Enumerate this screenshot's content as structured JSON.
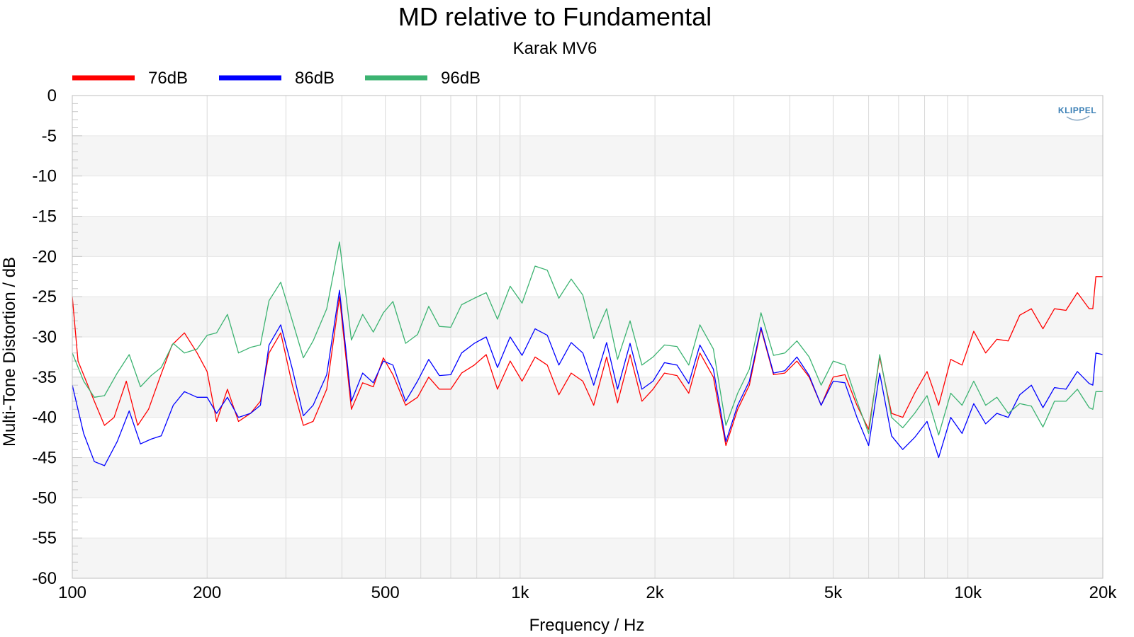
{
  "chart_data": {
    "type": "line",
    "title": "MD relative to Fundamental",
    "subtitle": "Karak MV6",
    "xlabel": "Frequency / Hz",
    "ylabel": "Multi-Tone Distortion / dB",
    "x_scale": "log",
    "xlim": [
      100,
      20000
    ],
    "ylim": [
      -60,
      0
    ],
    "grid": true,
    "legend_position": "top-left",
    "logo": "KLIPPEL",
    "x_ticks": [
      {
        "value": 100,
        "label": "100"
      },
      {
        "value": 200,
        "label": "200"
      },
      {
        "value": 500,
        "label": "500"
      },
      {
        "value": 1000,
        "label": "1k"
      },
      {
        "value": 2000,
        "label": "2k"
      },
      {
        "value": 5000,
        "label": "5k"
      },
      {
        "value": 10000,
        "label": "10k"
      },
      {
        "value": 20000,
        "label": "20k"
      }
    ],
    "y_ticks": [
      {
        "value": 0,
        "label": "0"
      },
      {
        "value": -5,
        "label": "-5"
      },
      {
        "value": -10,
        "label": "-10"
      },
      {
        "value": -15,
        "label": "-15"
      },
      {
        "value": -20,
        "label": "-20"
      },
      {
        "value": -25,
        "label": "-25"
      },
      {
        "value": -30,
        "label": "-30"
      },
      {
        "value": -35,
        "label": "-35"
      },
      {
        "value": -40,
        "label": "-40"
      },
      {
        "value": -45,
        "label": "-45"
      },
      {
        "value": -50,
        "label": "-50"
      },
      {
        "value": -55,
        "label": "-55"
      },
      {
        "value": -60,
        "label": "-60"
      }
    ],
    "series": [
      {
        "name": "76dB",
        "color": "#ff0000",
        "points": [
          [
            100,
            -25
          ],
          [
            103,
            -33
          ],
          [
            112,
            -38
          ],
          [
            118,
            -41
          ],
          [
            124,
            -40
          ],
          [
            132,
            -35.5
          ],
          [
            140,
            -41
          ],
          [
            148,
            -39
          ],
          [
            157,
            -35
          ],
          [
            167,
            -31
          ],
          [
            178,
            -29.5
          ],
          [
            190,
            -32
          ],
          [
            200,
            -34.3
          ],
          [
            210,
            -40.5
          ],
          [
            222,
            -36.5
          ],
          [
            235,
            -40.5
          ],
          [
            250,
            -39.5
          ],
          [
            263,
            -38
          ],
          [
            275,
            -32
          ],
          [
            292,
            -29.5
          ],
          [
            310,
            -36
          ],
          [
            328,
            -41
          ],
          [
            345,
            -40.5
          ],
          [
            370,
            -36.5
          ],
          [
            395,
            -25
          ],
          [
            420,
            -39
          ],
          [
            445,
            -35.7
          ],
          [
            470,
            -36.2
          ],
          [
            495,
            -32.6
          ],
          [
            520,
            -34.7
          ],
          [
            555,
            -38.5
          ],
          [
            590,
            -37.5
          ],
          [
            625,
            -35
          ],
          [
            660,
            -36.5
          ],
          [
            700,
            -36.5
          ],
          [
            740,
            -34.5
          ],
          [
            790,
            -33.5
          ],
          [
            840,
            -32.2
          ],
          [
            890,
            -36.5
          ],
          [
            950,
            -33
          ],
          [
            1010,
            -35.5
          ],
          [
            1080,
            -32.5
          ],
          [
            1150,
            -33.5
          ],
          [
            1220,
            -37.2
          ],
          [
            1300,
            -34.5
          ],
          [
            1380,
            -35.5
          ],
          [
            1460,
            -38.5
          ],
          [
            1560,
            -32.5
          ],
          [
            1650,
            -38.2
          ],
          [
            1760,
            -32.2
          ],
          [
            1870,
            -38
          ],
          [
            1980,
            -36.5
          ],
          [
            2100,
            -34.5
          ],
          [
            2240,
            -34.8
          ],
          [
            2380,
            -37
          ],
          [
            2520,
            -32
          ],
          [
            2700,
            -35
          ],
          [
            2880,
            -43.5
          ],
          [
            3060,
            -39
          ],
          [
            3250,
            -36
          ],
          [
            3450,
            -29
          ],
          [
            3680,
            -34.7
          ],
          [
            3900,
            -34.5
          ],
          [
            4150,
            -33
          ],
          [
            4420,
            -35
          ],
          [
            4700,
            -38.5
          ],
          [
            5000,
            -35
          ],
          [
            5310,
            -34.7
          ],
          [
            5650,
            -38.5
          ],
          [
            6000,
            -41.5
          ],
          [
            6350,
            -32.5
          ],
          [
            6750,
            -39.5
          ],
          [
            7150,
            -40
          ],
          [
            7600,
            -37
          ],
          [
            8100,
            -34.3
          ],
          [
            8600,
            -38.5
          ],
          [
            9150,
            -32.8
          ],
          [
            9700,
            -33.5
          ],
          [
            10300,
            -29.3
          ],
          [
            10950,
            -32
          ],
          [
            11600,
            -30.3
          ],
          [
            12300,
            -30.5
          ],
          [
            13050,
            -27.3
          ],
          [
            13850,
            -26.5
          ],
          [
            14700,
            -29
          ],
          [
            15600,
            -26.5
          ],
          [
            16550,
            -26.7
          ],
          [
            17550,
            -24.5
          ],
          [
            18650,
            -26.5
          ],
          [
            19000,
            -26.5
          ],
          [
            19300,
            -22.5
          ],
          [
            20000,
            -22.5
          ]
        ]
      },
      {
        "name": "86dB",
        "color": "#0000ff",
        "points": [
          [
            100,
            -36
          ],
          [
            106,
            -42
          ],
          [
            112,
            -45.5
          ],
          [
            118,
            -46
          ],
          [
            126,
            -43
          ],
          [
            134,
            -39.2
          ],
          [
            142,
            -43.3
          ],
          [
            150,
            -42.7
          ],
          [
            158,
            -42.3
          ],
          [
            168,
            -38.5
          ],
          [
            178,
            -36.8
          ],
          [
            190,
            -37.5
          ],
          [
            200,
            -37.5
          ],
          [
            210,
            -39.5
          ],
          [
            222,
            -37.5
          ],
          [
            235,
            -40
          ],
          [
            250,
            -39.5
          ],
          [
            263,
            -38.5
          ],
          [
            275,
            -31
          ],
          [
            292,
            -28.5
          ],
          [
            310,
            -34
          ],
          [
            328,
            -39.8
          ],
          [
            345,
            -38.5
          ],
          [
            370,
            -34.7
          ],
          [
            395,
            -24.2
          ],
          [
            420,
            -38
          ],
          [
            445,
            -34.5
          ],
          [
            470,
            -35.7
          ],
          [
            495,
            -33
          ],
          [
            520,
            -33.5
          ],
          [
            555,
            -38
          ],
          [
            590,
            -35.5
          ],
          [
            625,
            -32.8
          ],
          [
            660,
            -34.8
          ],
          [
            700,
            -34.7
          ],
          [
            740,
            -32
          ],
          [
            790,
            -30.8
          ],
          [
            840,
            -30
          ],
          [
            890,
            -33.8
          ],
          [
            950,
            -30
          ],
          [
            1010,
            -32.3
          ],
          [
            1080,
            -29
          ],
          [
            1150,
            -29.8
          ],
          [
            1220,
            -33.5
          ],
          [
            1300,
            -30.7
          ],
          [
            1380,
            -32
          ],
          [
            1460,
            -36
          ],
          [
            1560,
            -30.7
          ],
          [
            1650,
            -36.5
          ],
          [
            1760,
            -30.8
          ],
          [
            1870,
            -36.5
          ],
          [
            1980,
            -35.5
          ],
          [
            2100,
            -33.2
          ],
          [
            2240,
            -33.5
          ],
          [
            2380,
            -35.8
          ],
          [
            2520,
            -31
          ],
          [
            2700,
            -34
          ],
          [
            2880,
            -43
          ],
          [
            3060,
            -38.5
          ],
          [
            3250,
            -35.5
          ],
          [
            3450,
            -28.8
          ],
          [
            3680,
            -34.5
          ],
          [
            3900,
            -34.2
          ],
          [
            4150,
            -32.5
          ],
          [
            4420,
            -34.8
          ],
          [
            4700,
            -38.5
          ],
          [
            5000,
            -35.5
          ],
          [
            5310,
            -35.7
          ],
          [
            5650,
            -40
          ],
          [
            6000,
            -43.5
          ],
          [
            6350,
            -34.5
          ],
          [
            6750,
            -42.3
          ],
          [
            7150,
            -44
          ],
          [
            7600,
            -42.5
          ],
          [
            8100,
            -40.5
          ],
          [
            8600,
            -45
          ],
          [
            9150,
            -40
          ],
          [
            9700,
            -42
          ],
          [
            10300,
            -38.3
          ],
          [
            10950,
            -40.8
          ],
          [
            11600,
            -39.5
          ],
          [
            12300,
            -40
          ],
          [
            13050,
            -37.2
          ],
          [
            13850,
            -36
          ],
          [
            14700,
            -38.8
          ],
          [
            15600,
            -36.3
          ],
          [
            16550,
            -36.5
          ],
          [
            17550,
            -34.3
          ],
          [
            18650,
            -35.8
          ],
          [
            19000,
            -36
          ],
          [
            19300,
            -32
          ],
          [
            20000,
            -32.2
          ]
        ]
      },
      {
        "name": "96dB",
        "color": "#3cb371",
        "points": [
          [
            100,
            -32
          ],
          [
            106,
            -35.5
          ],
          [
            112,
            -37.5
          ],
          [
            118,
            -37.3
          ],
          [
            126,
            -34.5
          ],
          [
            134,
            -32.2
          ],
          [
            142,
            -36.2
          ],
          [
            150,
            -34.8
          ],
          [
            158,
            -33.8
          ],
          [
            168,
            -30.8
          ],
          [
            178,
            -32
          ],
          [
            190,
            -31.5
          ],
          [
            200,
            -29.8
          ],
          [
            210,
            -29.5
          ],
          [
            222,
            -27.2
          ],
          [
            235,
            -32
          ],
          [
            250,
            -31.3
          ],
          [
            263,
            -31
          ],
          [
            275,
            -25.5
          ],
          [
            292,
            -23.2
          ],
          [
            310,
            -28
          ],
          [
            328,
            -32.6
          ],
          [
            345,
            -30.5
          ],
          [
            370,
            -26.5
          ],
          [
            395,
            -18.2
          ],
          [
            420,
            -30.4
          ],
          [
            445,
            -27.2
          ],
          [
            470,
            -29.4
          ],
          [
            495,
            -27
          ],
          [
            520,
            -25.6
          ],
          [
            555,
            -30.8
          ],
          [
            590,
            -29.7
          ],
          [
            625,
            -26.2
          ],
          [
            660,
            -28.7
          ],
          [
            700,
            -28.8
          ],
          [
            740,
            -26
          ],
          [
            790,
            -25.2
          ],
          [
            840,
            -24.5
          ],
          [
            890,
            -27.8
          ],
          [
            950,
            -23.7
          ],
          [
            1010,
            -25.8
          ],
          [
            1080,
            -21.2
          ],
          [
            1150,
            -21.7
          ],
          [
            1220,
            -25.2
          ],
          [
            1300,
            -22.8
          ],
          [
            1380,
            -24.8
          ],
          [
            1460,
            -30.2
          ],
          [
            1560,
            -26.5
          ],
          [
            1650,
            -32.8
          ],
          [
            1760,
            -28
          ],
          [
            1870,
            -33.5
          ],
          [
            1980,
            -32.5
          ],
          [
            2100,
            -31
          ],
          [
            2240,
            -31.2
          ],
          [
            2380,
            -33.5
          ],
          [
            2520,
            -28.5
          ],
          [
            2700,
            -31.5
          ],
          [
            2880,
            -41
          ],
          [
            3060,
            -37
          ],
          [
            3250,
            -34
          ],
          [
            3450,
            -27
          ],
          [
            3680,
            -32.3
          ],
          [
            3900,
            -32
          ],
          [
            4150,
            -30.5
          ],
          [
            4420,
            -32.5
          ],
          [
            4700,
            -36
          ],
          [
            5000,
            -33
          ],
          [
            5310,
            -33.5
          ],
          [
            5650,
            -38
          ],
          [
            6000,
            -42
          ],
          [
            6350,
            -32.2
          ],
          [
            6750,
            -40
          ],
          [
            7150,
            -41.3
          ],
          [
            7600,
            -39.5
          ],
          [
            8100,
            -37.3
          ],
          [
            8600,
            -42.2
          ],
          [
            9150,
            -37
          ],
          [
            9700,
            -38.5
          ],
          [
            10300,
            -35.5
          ],
          [
            10950,
            -38.5
          ],
          [
            11600,
            -37.5
          ],
          [
            12300,
            -39.5
          ],
          [
            13050,
            -38.3
          ],
          [
            13850,
            -38.6
          ],
          [
            14700,
            -41.2
          ],
          [
            15600,
            -38
          ],
          [
            16550,
            -38
          ],
          [
            17550,
            -36.5
          ],
          [
            18650,
            -38.8
          ],
          [
            19000,
            -39
          ],
          [
            19300,
            -36.8
          ],
          [
            20000,
            -36.8
          ]
        ]
      }
    ]
  }
}
